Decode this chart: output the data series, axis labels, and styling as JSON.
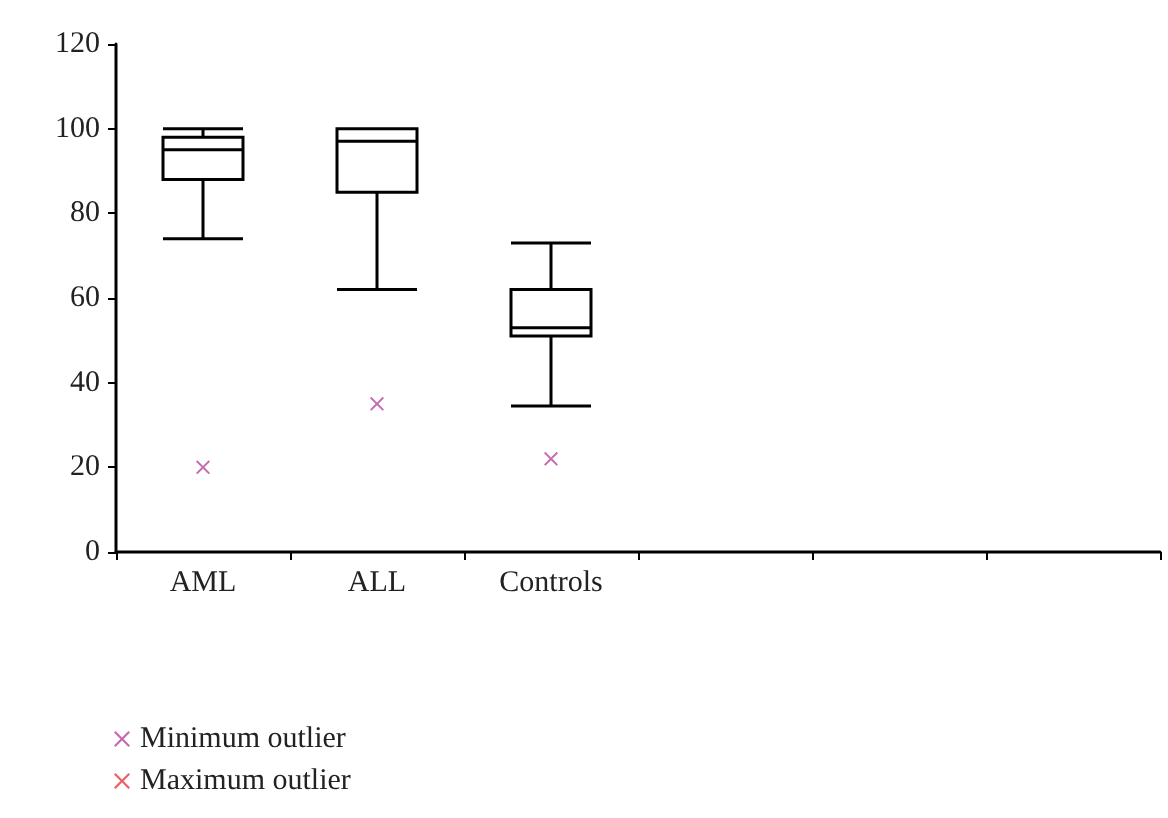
{
  "chart_data": {
    "type": "box",
    "categories": [
      "AML",
      "ALL",
      "Controls",
      null,
      null,
      null
    ],
    "ylim": [
      0,
      120
    ],
    "yticks": [
      0,
      20,
      40,
      60,
      80,
      100,
      120
    ],
    "grid": false,
    "legend": "bottom left",
    "series": [
      {
        "type": "box",
        "color": "#000000",
        "boxes": [
          {
            "low": 74,
            "q1": 88,
            "median": 95,
            "q3": 98,
            "high": 100
          },
          {
            "low": 62,
            "q1": 85,
            "median": 97,
            "q3": 100,
            "high": 100
          },
          {
            "low": 34.5,
            "q1": 51,
            "median": 53,
            "q3": 62,
            "high": 73
          },
          null,
          null,
          null
        ]
      },
      {
        "type": "scatter",
        "name": "Minimum outlier",
        "color": "#b5479e",
        "marker": "cross",
        "values": [
          20,
          35,
          22,
          null,
          null,
          null
        ]
      },
      {
        "type": "scatter",
        "name": "Maximum outlier",
        "color": "#e8383d",
        "marker": "cross",
        "values": [
          null,
          null,
          null,
          null,
          null,
          null
        ]
      }
    ]
  }
}
